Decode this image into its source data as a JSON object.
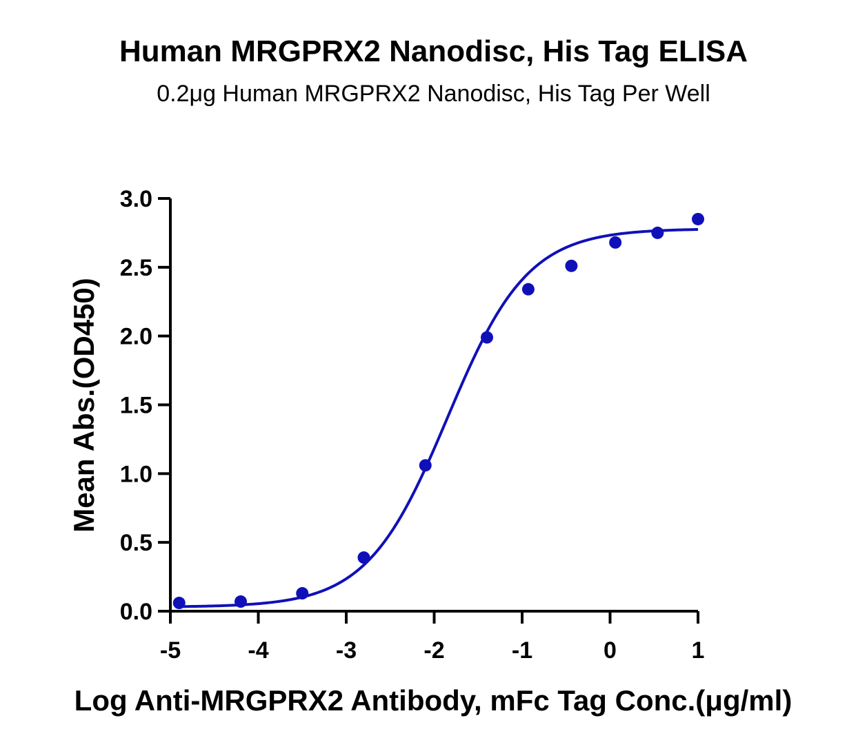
{
  "title": "Human MRGPRX2 Nanodisc, His Tag ELISA",
  "subtitle": "0.2μg Human MRGPRX2 Nanodisc, His Tag Per Well",
  "colors": {
    "series": "#1010b8",
    "axis": "#000000",
    "background": "#ffffff"
  },
  "chart_data": {
    "type": "scatter",
    "title": "Human MRGPRX2 Nanodisc, His Tag ELISA",
    "subtitle": "0.2μg Human MRGPRX2 Nanodisc, His Tag Per Well",
    "xlabel": "Log Anti-MRGPRX2 Antibody, mFc Tag Conc.(μg/ml)",
    "ylabel": "Mean Abs.(OD450)",
    "xlim": [
      -5,
      1
    ],
    "ylim": [
      0,
      3.0
    ],
    "x_ticks": [
      "-5",
      "-4",
      "-3",
      "-2",
      "-1",
      "0",
      "1"
    ],
    "y_ticks": [
      "0.0",
      "0.5",
      "1.0",
      "1.5",
      "2.0",
      "2.5",
      "3.0"
    ],
    "grid": false,
    "series": [
      {
        "x": [
          -4.9,
          -4.2,
          -3.5,
          -2.8,
          -2.1,
          -1.4,
          -0.93,
          -0.44,
          0.06,
          0.54,
          1.0
        ],
        "y": [
          0.06,
          0.07,
          0.13,
          0.39,
          1.06,
          1.99,
          2.34,
          2.51,
          2.68,
          2.75,
          2.85
        ]
      }
    ],
    "fit_curve": {
      "model": "4PL",
      "bottom": 0.03,
      "top": 2.78,
      "log_ec50": -1.85,
      "hill_slope": 0.95,
      "x_range": [
        -4.9,
        1.0
      ]
    }
  }
}
